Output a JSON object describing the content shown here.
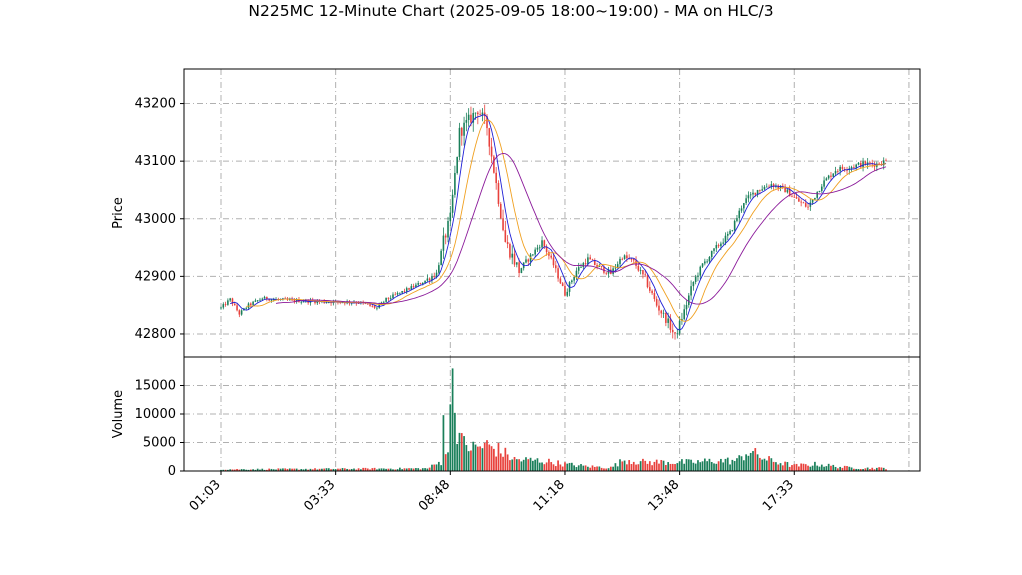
{
  "title": "N225MC 12-Minute Chart (2025-09-05 18:00~19:00) - MA on HLC/3",
  "colors": {
    "up": "#1a7f5a",
    "down": "#e8413c",
    "ma_fast": "#1f1fd6",
    "ma_mid": "#f0a020",
    "ma_slow": "#8b1a9a",
    "grid": "#b0b0b0"
  },
  "chart_data": {
    "type": "candlestick",
    "price_panel": {
      "ylabel": "Price",
      "ylim": [
        42760,
        43260
      ],
      "yticks": [
        42800,
        42900,
        43000,
        43100,
        43200
      ]
    },
    "volume_panel": {
      "ylabel": "Volume",
      "ylim": [
        0,
        20000
      ],
      "yticks": [
        0,
        5000,
        10000,
        15000
      ]
    },
    "xticks": [
      "01:03",
      "03:33",
      "08:48",
      "11:18",
      "13:48",
      "17:33"
    ],
    "grid": true,
    "price_anchors": [
      {
        "x": 0,
        "y": 42845
      },
      {
        "x": 4,
        "y": 42860
      },
      {
        "x": 8,
        "y": 42835
      },
      {
        "x": 12,
        "y": 42850
      },
      {
        "x": 18,
        "y": 42862
      },
      {
        "x": 30,
        "y": 42858
      },
      {
        "x": 45,
        "y": 42856
      },
      {
        "x": 60,
        "y": 42855
      },
      {
        "x": 68,
        "y": 42845
      },
      {
        "x": 72,
        "y": 42860
      },
      {
        "x": 80,
        "y": 42875
      },
      {
        "x": 88,
        "y": 42890
      },
      {
        "x": 94,
        "y": 42905
      },
      {
        "x": 97,
        "y": 42960
      },
      {
        "x": 100,
        "y": 43000
      },
      {
        "x": 104,
        "y": 43150
      },
      {
        "x": 108,
        "y": 43170
      },
      {
        "x": 112,
        "y": 43190
      },
      {
        "x": 116,
        "y": 43160
      },
      {
        "x": 120,
        "y": 43060
      },
      {
        "x": 124,
        "y": 42960
      },
      {
        "x": 130,
        "y": 42910
      },
      {
        "x": 136,
        "y": 42940
      },
      {
        "x": 140,
        "y": 42960
      },
      {
        "x": 145,
        "y": 42920
      },
      {
        "x": 150,
        "y": 42870
      },
      {
        "x": 155,
        "y": 42910
      },
      {
        "x": 160,
        "y": 42930
      },
      {
        "x": 165,
        "y": 42915
      },
      {
        "x": 170,
        "y": 42905
      },
      {
        "x": 175,
        "y": 42935
      },
      {
        "x": 180,
        "y": 42925
      },
      {
        "x": 185,
        "y": 42895
      },
      {
        "x": 190,
        "y": 42850
      },
      {
        "x": 195,
        "y": 42820
      },
      {
        "x": 198,
        "y": 42795
      },
      {
        "x": 202,
        "y": 42840
      },
      {
        "x": 206,
        "y": 42890
      },
      {
        "x": 210,
        "y": 42920
      },
      {
        "x": 216,
        "y": 42950
      },
      {
        "x": 222,
        "y": 42975
      },
      {
        "x": 228,
        "y": 43030
      },
      {
        "x": 234,
        "y": 43050
      },
      {
        "x": 240,
        "y": 43060
      },
      {
        "x": 246,
        "y": 43050
      },
      {
        "x": 252,
        "y": 43030
      },
      {
        "x": 256,
        "y": 43020
      },
      {
        "x": 262,
        "y": 43060
      },
      {
        "x": 268,
        "y": 43085
      },
      {
        "x": 274,
        "y": 43090
      },
      {
        "x": 280,
        "y": 43095
      },
      {
        "x": 286,
        "y": 43095
      },
      {
        "x": 290,
        "y": 43100
      }
    ],
    "volume_anchors": [
      {
        "x": 0,
        "y": 280
      },
      {
        "x": 90,
        "y": 450
      },
      {
        "x": 96,
        "y": 1600
      },
      {
        "x": 97,
        "y": 9800
      },
      {
        "x": 98,
        "y": 3300
      },
      {
        "x": 99,
        "y": 2600
      },
      {
        "x": 100,
        "y": 12000
      },
      {
        "x": 101,
        "y": 18000
      },
      {
        "x": 102,
        "y": 10200
      },
      {
        "x": 103,
        "y": 7800
      },
      {
        "x": 105,
        "y": 5000
      },
      {
        "x": 110,
        "y": 4000
      },
      {
        "x": 116,
        "y": 4500
      },
      {
        "x": 122,
        "y": 3500
      },
      {
        "x": 128,
        "y": 2000
      },
      {
        "x": 140,
        "y": 1800
      },
      {
        "x": 150,
        "y": 1200
      },
      {
        "x": 160,
        "y": 800
      },
      {
        "x": 170,
        "y": 600
      },
      {
        "x": 176,
        "y": 2000
      },
      {
        "x": 185,
        "y": 1500
      },
      {
        "x": 195,
        "y": 1600
      },
      {
        "x": 205,
        "y": 1500
      },
      {
        "x": 215,
        "y": 1800
      },
      {
        "x": 225,
        "y": 1800
      },
      {
        "x": 230,
        "y": 3500
      },
      {
        "x": 238,
        "y": 2000
      },
      {
        "x": 250,
        "y": 900
      },
      {
        "x": 260,
        "y": 1200
      },
      {
        "x": 270,
        "y": 700
      },
      {
        "x": 280,
        "y": 500
      },
      {
        "x": 290,
        "y": 500
      }
    ]
  }
}
